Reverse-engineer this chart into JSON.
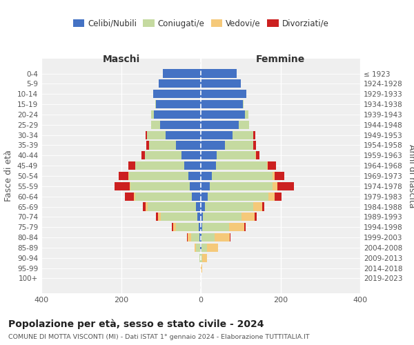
{
  "age_groups": [
    "0-4",
    "5-9",
    "10-14",
    "15-19",
    "20-24",
    "25-29",
    "30-34",
    "35-39",
    "40-44",
    "45-49",
    "50-54",
    "55-59",
    "60-64",
    "65-69",
    "70-74",
    "75-79",
    "80-84",
    "85-89",
    "90-94",
    "95-99",
    "100+"
  ],
  "birth_years": [
    "2019-2023",
    "2014-2018",
    "2009-2013",
    "2004-2008",
    "1999-2003",
    "1994-1998",
    "1989-1993",
    "1984-1988",
    "1979-1983",
    "1974-1978",
    "1969-1973",
    "1964-1968",
    "1959-1963",
    "1954-1958",
    "1949-1953",
    "1944-1948",
    "1939-1943",
    "1934-1938",
    "1929-1933",
    "1924-1928",
    "≤ 1923"
  ],
  "colors": {
    "celibi": "#4472c4",
    "coniugati": "#c5daa0",
    "vedovi": "#f5c97a",
    "divorziati": "#cc2020"
  },
  "males": {
    "celibi": [
      95,
      105,
      120,
      112,
      118,
      102,
      88,
      62,
      48,
      42,
      32,
      28,
      22,
      12,
      8,
      5,
      3,
      2,
      0,
      0,
      0
    ],
    "coniugati": [
      0,
      0,
      0,
      2,
      6,
      22,
      47,
      68,
      92,
      122,
      148,
      148,
      142,
      122,
      92,
      58,
      22,
      10,
      3,
      0,
      0
    ],
    "vedovi": [
      0,
      0,
      0,
      0,
      0,
      1,
      0,
      0,
      0,
      1,
      2,
      3,
      4,
      5,
      8,
      6,
      8,
      4,
      1,
      0,
      0
    ],
    "divorziati": [
      0,
      0,
      0,
      0,
      0,
      0,
      3,
      6,
      9,
      16,
      24,
      38,
      22,
      6,
      4,
      3,
      2,
      0,
      0,
      0,
      0
    ]
  },
  "females": {
    "celibi": [
      90,
      100,
      115,
      105,
      110,
      95,
      80,
      60,
      40,
      38,
      28,
      22,
      18,
      10,
      5,
      3,
      2,
      2,
      0,
      0,
      0
    ],
    "coniugati": [
      0,
      0,
      0,
      2,
      9,
      27,
      52,
      72,
      97,
      128,
      152,
      158,
      152,
      122,
      98,
      68,
      32,
      14,
      3,
      0,
      0
    ],
    "vedovi": [
      0,
      0,
      0,
      0,
      0,
      0,
      0,
      0,
      1,
      2,
      6,
      12,
      16,
      22,
      32,
      38,
      38,
      28,
      12,
      3,
      0
    ],
    "divorziati": [
      0,
      0,
      0,
      0,
      0,
      0,
      4,
      6,
      9,
      20,
      24,
      42,
      16,
      6,
      6,
      4,
      3,
      0,
      0,
      0,
      0
    ]
  },
  "xlim": 400,
  "title": "Popolazione per età, sesso e stato civile - 2024",
  "subtitle": "COMUNE DI MOTTA VISCONTI (MI) - Dati ISTAT 1° gennaio 2024 - Elaborazione TUTTITALIA.IT",
  "ylabel_left": "Fasce di età",
  "ylabel_right": "Anni di nascita",
  "xlabel_left": "Maschi",
  "xlabel_right": "Femmine",
  "legend_labels": [
    "Celibi/Nubili",
    "Coniugati/e",
    "Vedovi/e",
    "Divorziati/e"
  ],
  "background_color": "#efefef"
}
